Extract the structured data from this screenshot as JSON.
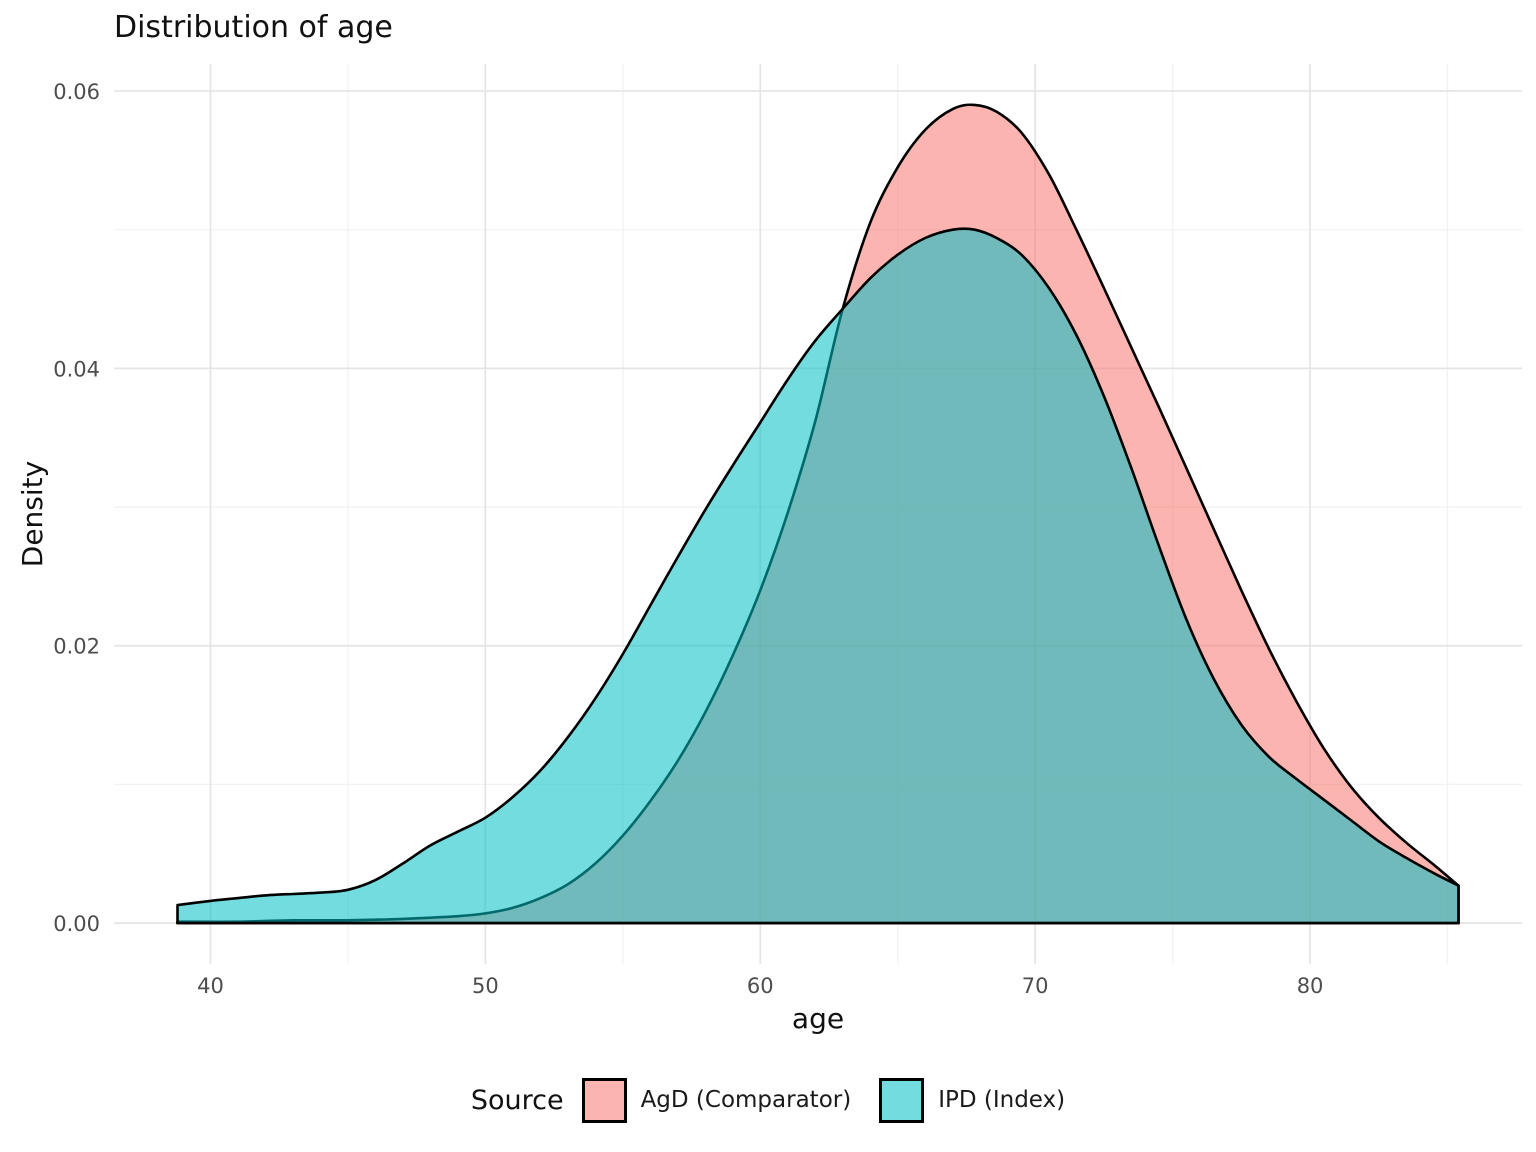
{
  "title": "Distribution of age",
  "axes": {
    "x_title": "age",
    "y_title": "Density",
    "x_major_ticks": [
      40,
      50,
      60,
      70,
      80
    ],
    "x_minor_ticks": [
      45,
      55,
      65,
      75,
      85
    ],
    "y_major_ticks": [
      0,
      0.02,
      0.04,
      0.06
    ],
    "y_major_labels": [
      "0.00",
      "0.02",
      "0.04",
      "0.06"
    ],
    "y_minor_ticks": [
      0.01,
      0.03,
      0.05
    ]
  },
  "legend": {
    "title": "Source",
    "items": [
      {
        "label": "AgD (Comparator)",
        "fill": "#F8766D"
      },
      {
        "label": "IPD (Index)",
        "fill": "#00BFC4"
      }
    ]
  },
  "colors": {
    "agd_fill": "#F8766D",
    "ipd_fill": "#00BFC4",
    "fill_opacity": 0.55,
    "curve_stroke": "#000000",
    "grid_major": "#E4E4E4",
    "grid_minor": "#F2F2F2",
    "tick_text": "#4D4D4D",
    "title_text": "#111111",
    "background": "#FFFFFF"
  },
  "chart_data": {
    "type": "area",
    "subtype": "overlaid-density",
    "title": "Distribution of age",
    "xlabel": "age",
    "ylabel": "Density",
    "xlim": [
      36.49,
      87.71
    ],
    "ylim": [
      -0.00295,
      0.06195
    ],
    "grid": "on",
    "legend_position": "bottom",
    "series": [
      {
        "name": "AgD (Comparator)",
        "color": "#F8766D",
        "peak": {
          "age": 67.8,
          "density": 0.059
        },
        "points": [
          [
            38.8,
            0.0001
          ],
          [
            41,
            0.0001
          ],
          [
            43,
            0.0002
          ],
          [
            45,
            0.0002
          ],
          [
            47,
            0.0003
          ],
          [
            49,
            0.0005
          ],
          [
            50,
            0.0007
          ],
          [
            51,
            0.0011
          ],
          [
            52,
            0.0018
          ],
          [
            53,
            0.0028
          ],
          [
            54,
            0.0043
          ],
          [
            55,
            0.0063
          ],
          [
            56,
            0.0088
          ],
          [
            57,
            0.0117
          ],
          [
            58,
            0.0152
          ],
          [
            59,
            0.0193
          ],
          [
            60,
            0.024
          ],
          [
            61,
            0.0296
          ],
          [
            62,
            0.0362
          ],
          [
            63,
            0.0443
          ],
          [
            64,
            0.0505
          ],
          [
            65,
            0.0545
          ],
          [
            66,
            0.0572
          ],
          [
            67,
            0.0587
          ],
          [
            67.8,
            0.059
          ],
          [
            68.6,
            0.0585
          ],
          [
            69.5,
            0.057
          ],
          [
            70.5,
            0.054
          ],
          [
            71.5,
            0.05
          ],
          [
            72.5,
            0.0458
          ],
          [
            73.5,
            0.0415
          ],
          [
            74.5,
            0.0372
          ],
          [
            75.5,
            0.0328
          ],
          [
            76.5,
            0.0284
          ],
          [
            77.5,
            0.024
          ],
          [
            78.5,
            0.0198
          ],
          [
            79.5,
            0.016
          ],
          [
            80.5,
            0.0126
          ],
          [
            81.5,
            0.0098
          ],
          [
            82.5,
            0.0076
          ],
          [
            83.5,
            0.0058
          ],
          [
            84.5,
            0.0042
          ],
          [
            85.4,
            0.0027
          ]
        ]
      },
      {
        "name": "IPD (Index)",
        "color": "#00BFC4",
        "peak": {
          "age": 67.3,
          "density": 0.05
        },
        "points": [
          [
            38.8,
            0.0013
          ],
          [
            40,
            0.0016
          ],
          [
            41,
            0.0018
          ],
          [
            42,
            0.002
          ],
          [
            43,
            0.0021
          ],
          [
            44,
            0.0022
          ],
          [
            45,
            0.0024
          ],
          [
            46,
            0.0031
          ],
          [
            47,
            0.0043
          ],
          [
            48,
            0.0056
          ],
          [
            49,
            0.0066
          ],
          [
            50,
            0.0076
          ],
          [
            51,
            0.0091
          ],
          [
            52,
            0.011
          ],
          [
            53,
            0.0134
          ],
          [
            54,
            0.0162
          ],
          [
            55,
            0.0194
          ],
          [
            56,
            0.0229
          ],
          [
            57,
            0.0264
          ],
          [
            58,
            0.0298
          ],
          [
            59,
            0.033
          ],
          [
            60,
            0.0361
          ],
          [
            61,
            0.0392
          ],
          [
            62,
            0.042
          ],
          [
            63,
            0.0443
          ],
          [
            64,
            0.0465
          ],
          [
            65,
            0.0482
          ],
          [
            66,
            0.0494
          ],
          [
            67,
            0.05
          ],
          [
            67.8,
            0.05
          ],
          [
            68.6,
            0.0494
          ],
          [
            69.5,
            0.0482
          ],
          [
            70.5,
            0.0458
          ],
          [
            71.5,
            0.0424
          ],
          [
            72.5,
            0.038
          ],
          [
            73.5,
            0.0328
          ],
          [
            74.5,
            0.0272
          ],
          [
            75.5,
            0.0219
          ],
          [
            76.5,
            0.0176
          ],
          [
            77.5,
            0.0143
          ],
          [
            78.5,
            0.012
          ],
          [
            79.5,
            0.0104
          ],
          [
            80.5,
            0.0089
          ],
          [
            81.5,
            0.0074
          ],
          [
            82.5,
            0.0059
          ],
          [
            83.5,
            0.0047
          ],
          [
            84.5,
            0.0036
          ],
          [
            85.4,
            0.0027
          ]
        ]
      }
    ]
  }
}
